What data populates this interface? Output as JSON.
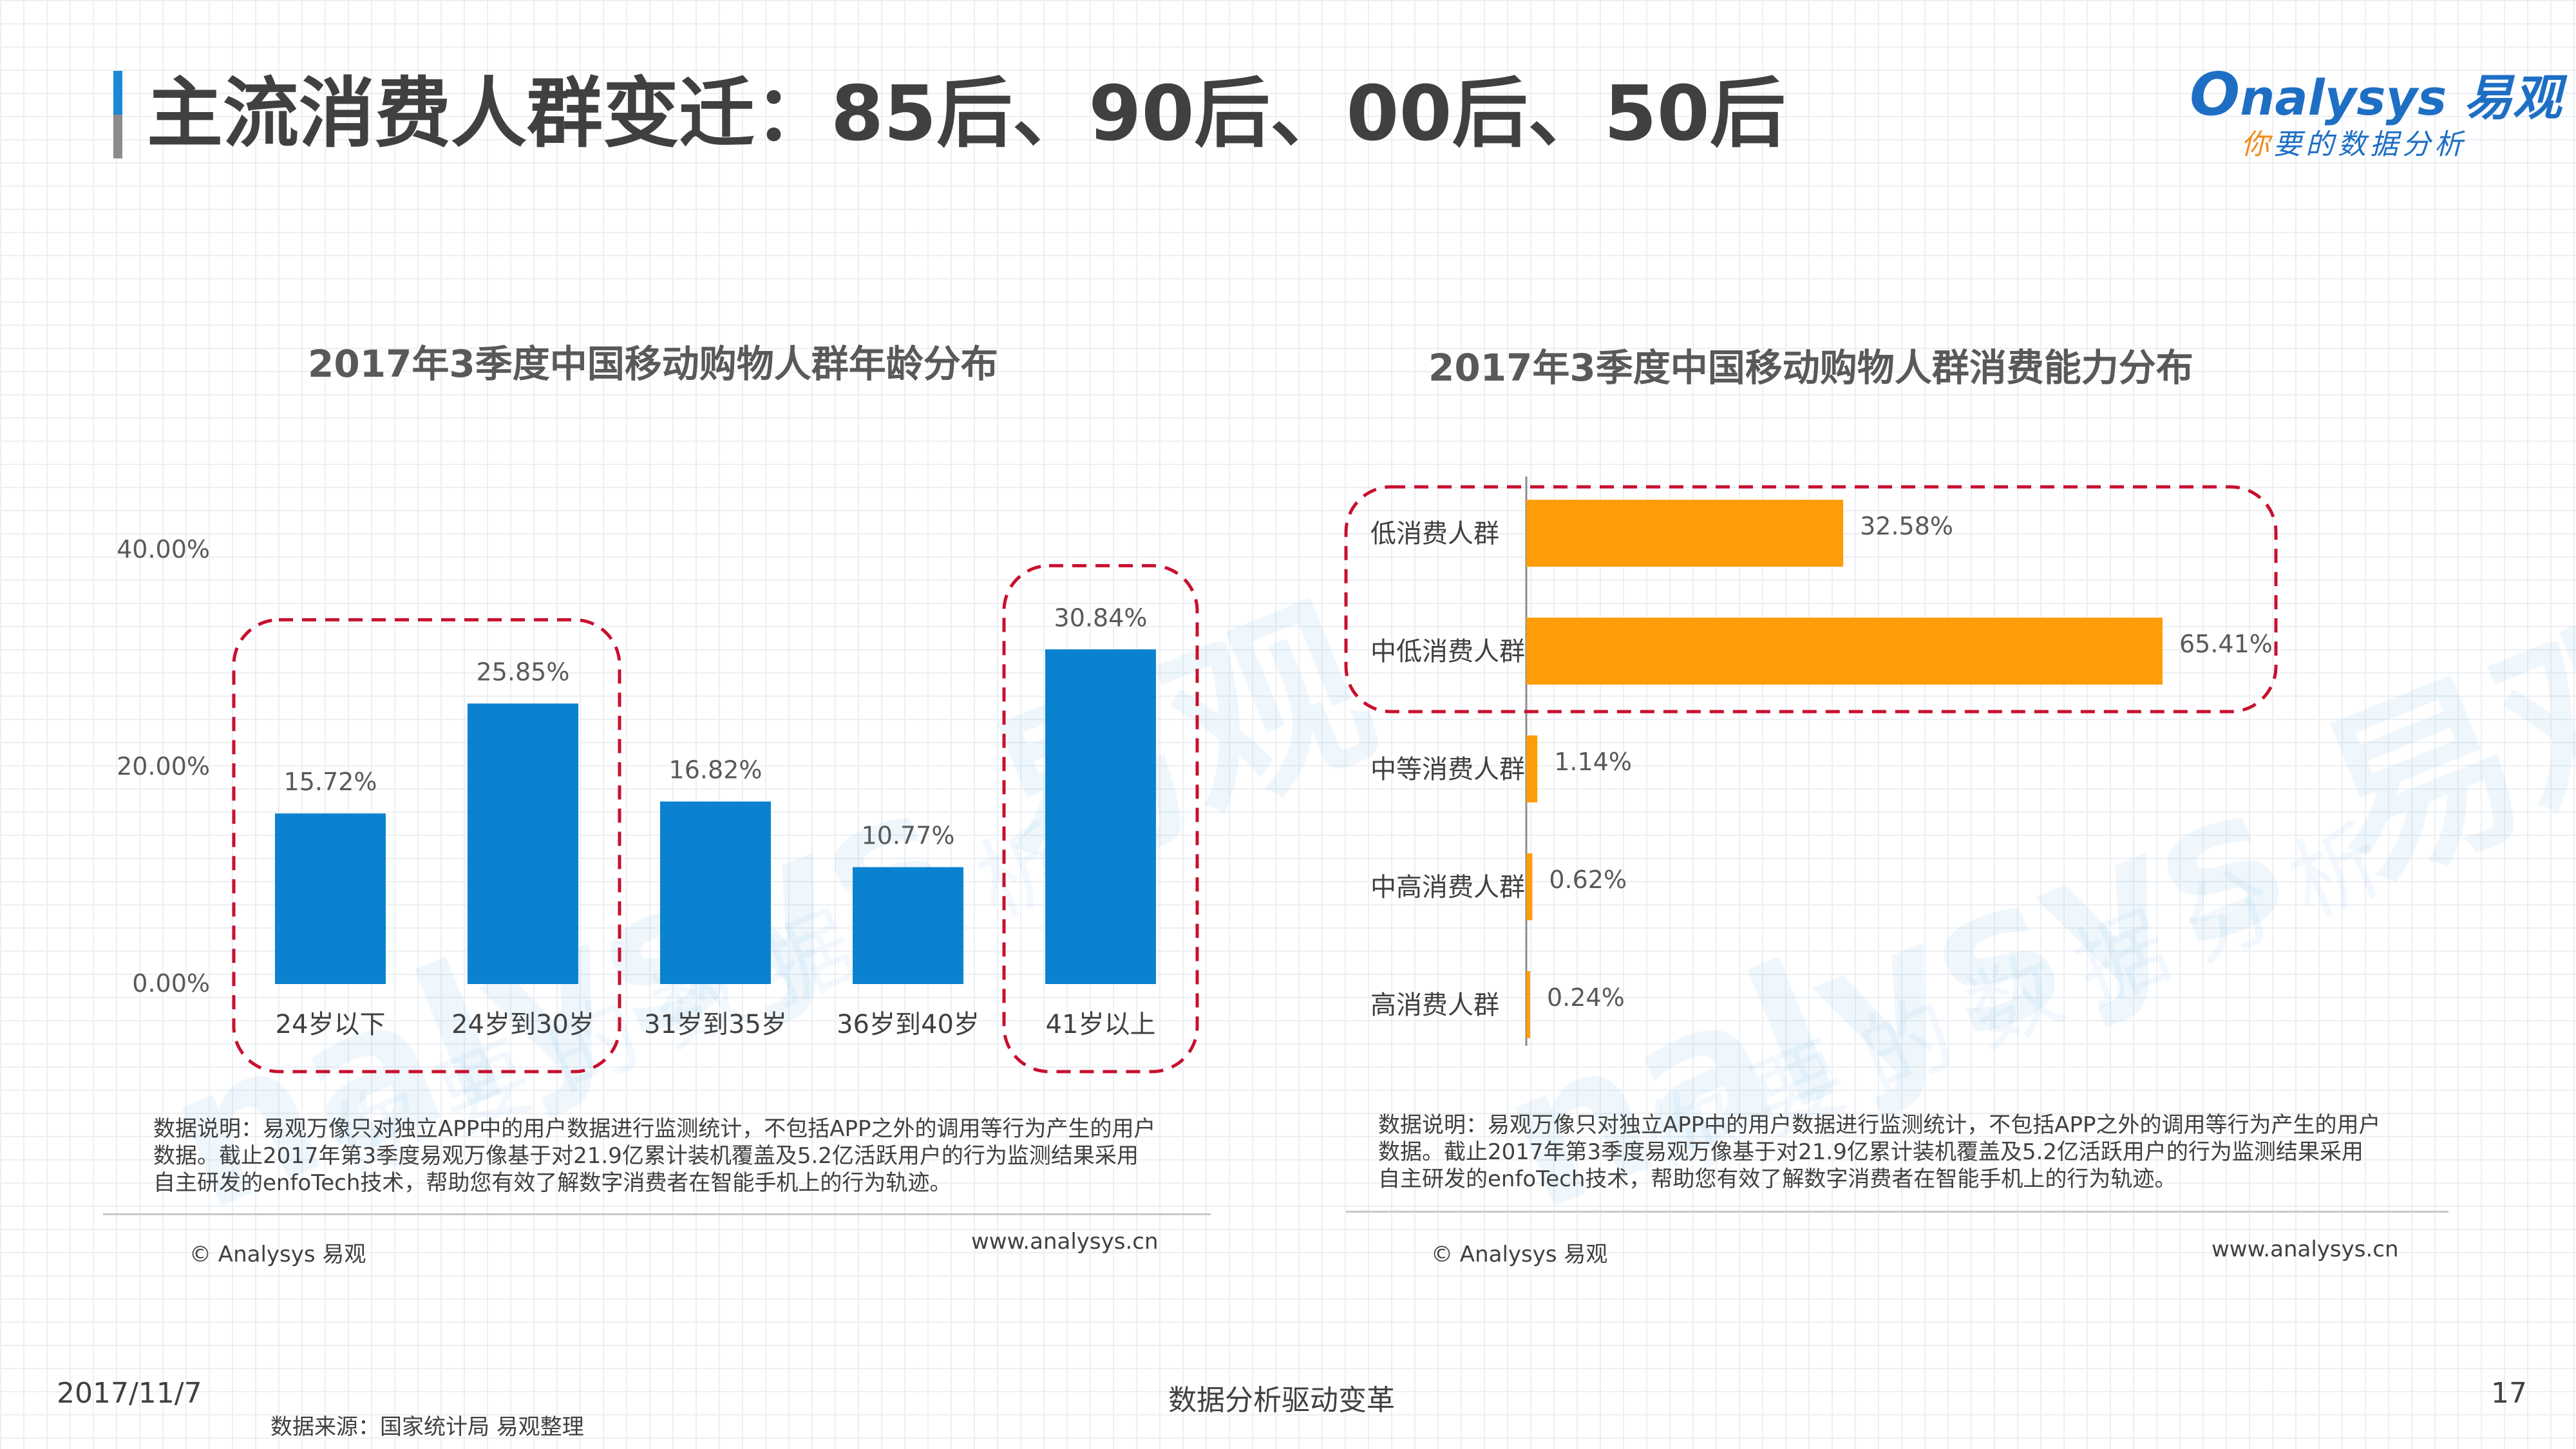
{
  "page": {
    "title": "主流消费人群变迁：85后、90后、00后、50后",
    "logo_brand": "nalysys 易观",
    "logo_brand_first": "O",
    "logo_slogan_first": "你",
    "logo_slogan_rest": "要的数据分析",
    "watermark_text": "nalysys 易观",
    "watermark_sub": "你要的数据分析",
    "date": "2017/11/7",
    "center_footer": "数据分析驱动变革",
    "page_number": "17",
    "source": "数据来源：国家统计局 易观整理"
  },
  "left_panel": {
    "note": "数据说明：易观万像只对独立APP中的用户数据进行监测统计，不包括APP之外的调用等行为产生的用户数据。截止2017年第3季度易观万像基于对21.9亿累计装机覆盖及5.2亿活跃用户的行为监测结果采用自主研发的enfoTech技术，帮助您有效了解数字消费者在智能手机上的行为轨迹。",
    "copyright": "© Analysys 易观",
    "website": "www.analysys.cn"
  },
  "right_panel": {
    "note": "数据说明：易观万像只对独立APP中的用户数据进行监测统计，不包括APP之外的调用等行为产生的用户数据。截止2017年第3季度易观万像基于对21.9亿累计装机覆盖及5.2亿活跃用户的行为监测结果采用自主研发的enfoTech技术，帮助您有效了解数字消费者在智能手机上的行为轨迹。",
    "copyright": "© Analysys 易观",
    "website": "www.analysys.cn"
  },
  "colors": {
    "bar_blue": "#0a82cf",
    "bar_orange": "#ff9d08",
    "highlight_red": "#c8102e",
    "title_accent_blue": "#1e88d8"
  },
  "chart_data": [
    {
      "type": "bar",
      "title": "2017年3季度中国移动购物人群年龄分布",
      "categories": [
        "24岁以下",
        "24岁到30岁",
        "31岁到35岁",
        "36岁到40岁",
        "41岁以上"
      ],
      "values": [
        15.72,
        25.85,
        16.82,
        10.77,
        30.84
      ],
      "value_labels": [
        "15.72%",
        "25.85%",
        "16.82%",
        "10.77%",
        "30.84%"
      ],
      "ylim": [
        0,
        40
      ],
      "yticks": [
        "0.00%",
        "20.00%",
        "40.00%"
      ],
      "highlight_groups": [
        [
          "24岁以下",
          "24岁到30岁"
        ],
        [
          "41岁以上"
        ]
      ]
    },
    {
      "type": "bar",
      "orientation": "horizontal",
      "title": "2017年3季度中国移动购物人群消费能力分布",
      "categories": [
        "低消费人群",
        "中低消费人群",
        "中等消费人群",
        "中高消费人群",
        "高消费人群"
      ],
      "values": [
        32.58,
        65.41,
        1.14,
        0.62,
        0.24
      ],
      "value_labels": [
        "32.58%",
        "65.41%",
        "1.14%",
        "0.62%",
        "0.24%"
      ],
      "xlim": [
        0,
        65.41
      ],
      "highlight_groups": [
        [
          "低消费人群",
          "中低消费人群"
        ]
      ]
    }
  ]
}
